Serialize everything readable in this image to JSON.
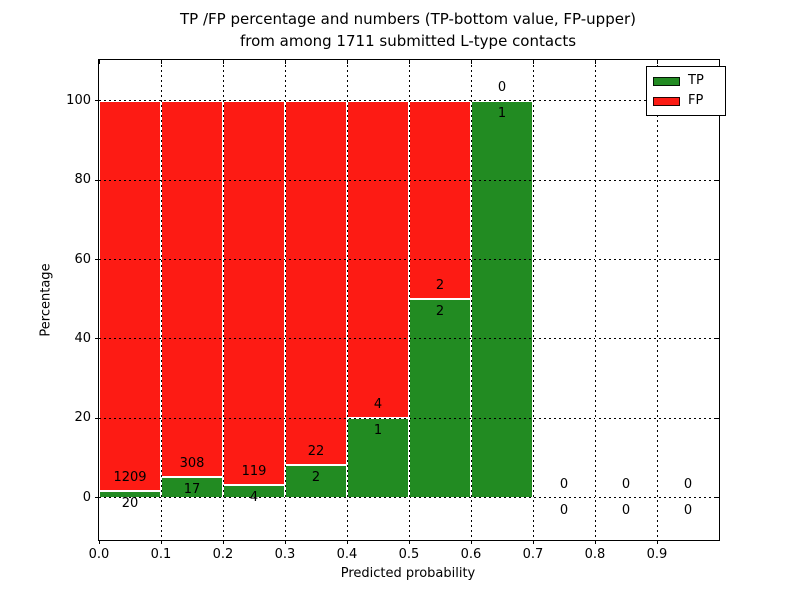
{
  "title": {
    "line1": "TP /FP percentage and numbers (TP-bottom value, FP-upper)",
    "line2": "from among 1711 submitted L-type contacts"
  },
  "chart_data": {
    "type": "bar",
    "stacked": true,
    "title": "TP /FP percentage and numbers (TP-bottom value, FP-upper)\nfrom among 1711 submitted L-type contacts",
    "xlabel": "Predicted probability",
    "ylabel": "Percentage",
    "xlim": [
      0.0,
      1.0
    ],
    "ylim": [
      -10.7,
      110.3
    ],
    "grid": "dotted",
    "legend_position": "upper right",
    "bin_starts": [
      0.0,
      0.1,
      0.2,
      0.3,
      0.4,
      0.5,
      0.6,
      0.7,
      0.8,
      0.9
    ],
    "bin_width": 0.1,
    "x_tick_labels": [
      "0.0",
      "0.1",
      "0.2",
      "0.3",
      "0.4",
      "0.5",
      "0.6",
      "0.7",
      "0.8",
      "0.9"
    ],
    "y_tick_values": [
      0,
      20,
      40,
      60,
      80,
      100
    ],
    "series": [
      {
        "name": "TP",
        "color": "#228b22",
        "counts": [
          20,
          17,
          4,
          2,
          1,
          2,
          1,
          0,
          0,
          0
        ],
        "pct": [
          1.63,
          5.23,
          3.25,
          8.33,
          20.0,
          50.0,
          100.0,
          0,
          0,
          0
        ]
      },
      {
        "name": "FP",
        "color": "#fd1b14",
        "counts": [
          1209,
          308,
          119,
          22,
          4,
          2,
          0,
          0,
          0,
          0
        ],
        "pct": [
          98.37,
          94.77,
          96.75,
          91.67,
          80.0,
          50.0,
          0.0,
          0,
          0,
          0
        ]
      }
    ]
  }
}
